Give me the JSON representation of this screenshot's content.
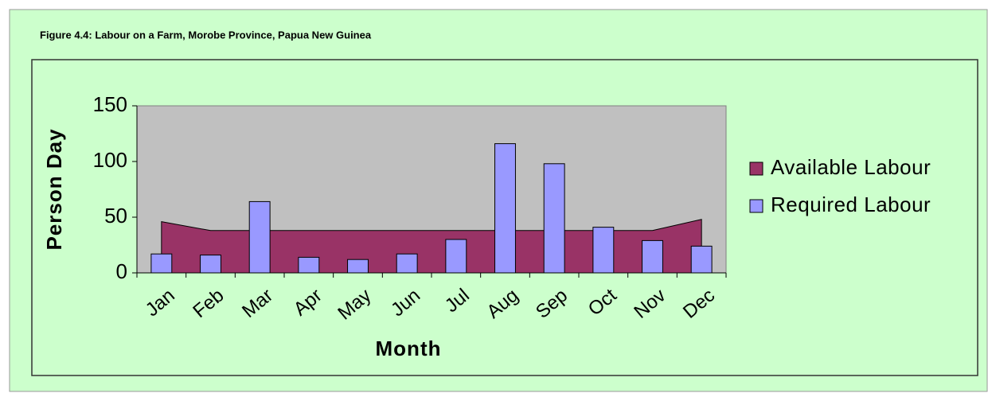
{
  "chart_data": {
    "type": "bar",
    "title": "Figure 4.4:  Labour on a Farm, Morobe Province, Papua New Guinea",
    "x_label": "Month",
    "y_label": "Person Day",
    "categories": [
      "Jan",
      "Feb",
      "Mar",
      "Apr",
      "May",
      "Jun",
      "Jul",
      "Aug",
      "Sep",
      "Oct",
      "Nov",
      "Dec"
    ],
    "series": [
      {
        "name": "Available Labour",
        "type": "area",
        "color": "#993366",
        "values": [
          46,
          38,
          38,
          38,
          38,
          38,
          38,
          38,
          38,
          38,
          38,
          48
        ]
      },
      {
        "name": "Required Labour",
        "type": "bar",
        "color": "#9999ff",
        "values": [
          17,
          16,
          64,
          14,
          12,
          17,
          30,
          116,
          98,
          41,
          29,
          24
        ]
      }
    ],
    "ylim": [
      0,
      150
    ],
    "yticks": [
      0,
      50,
      100,
      150
    ],
    "legend": "right",
    "plot_color": "#c0c0c0"
  }
}
